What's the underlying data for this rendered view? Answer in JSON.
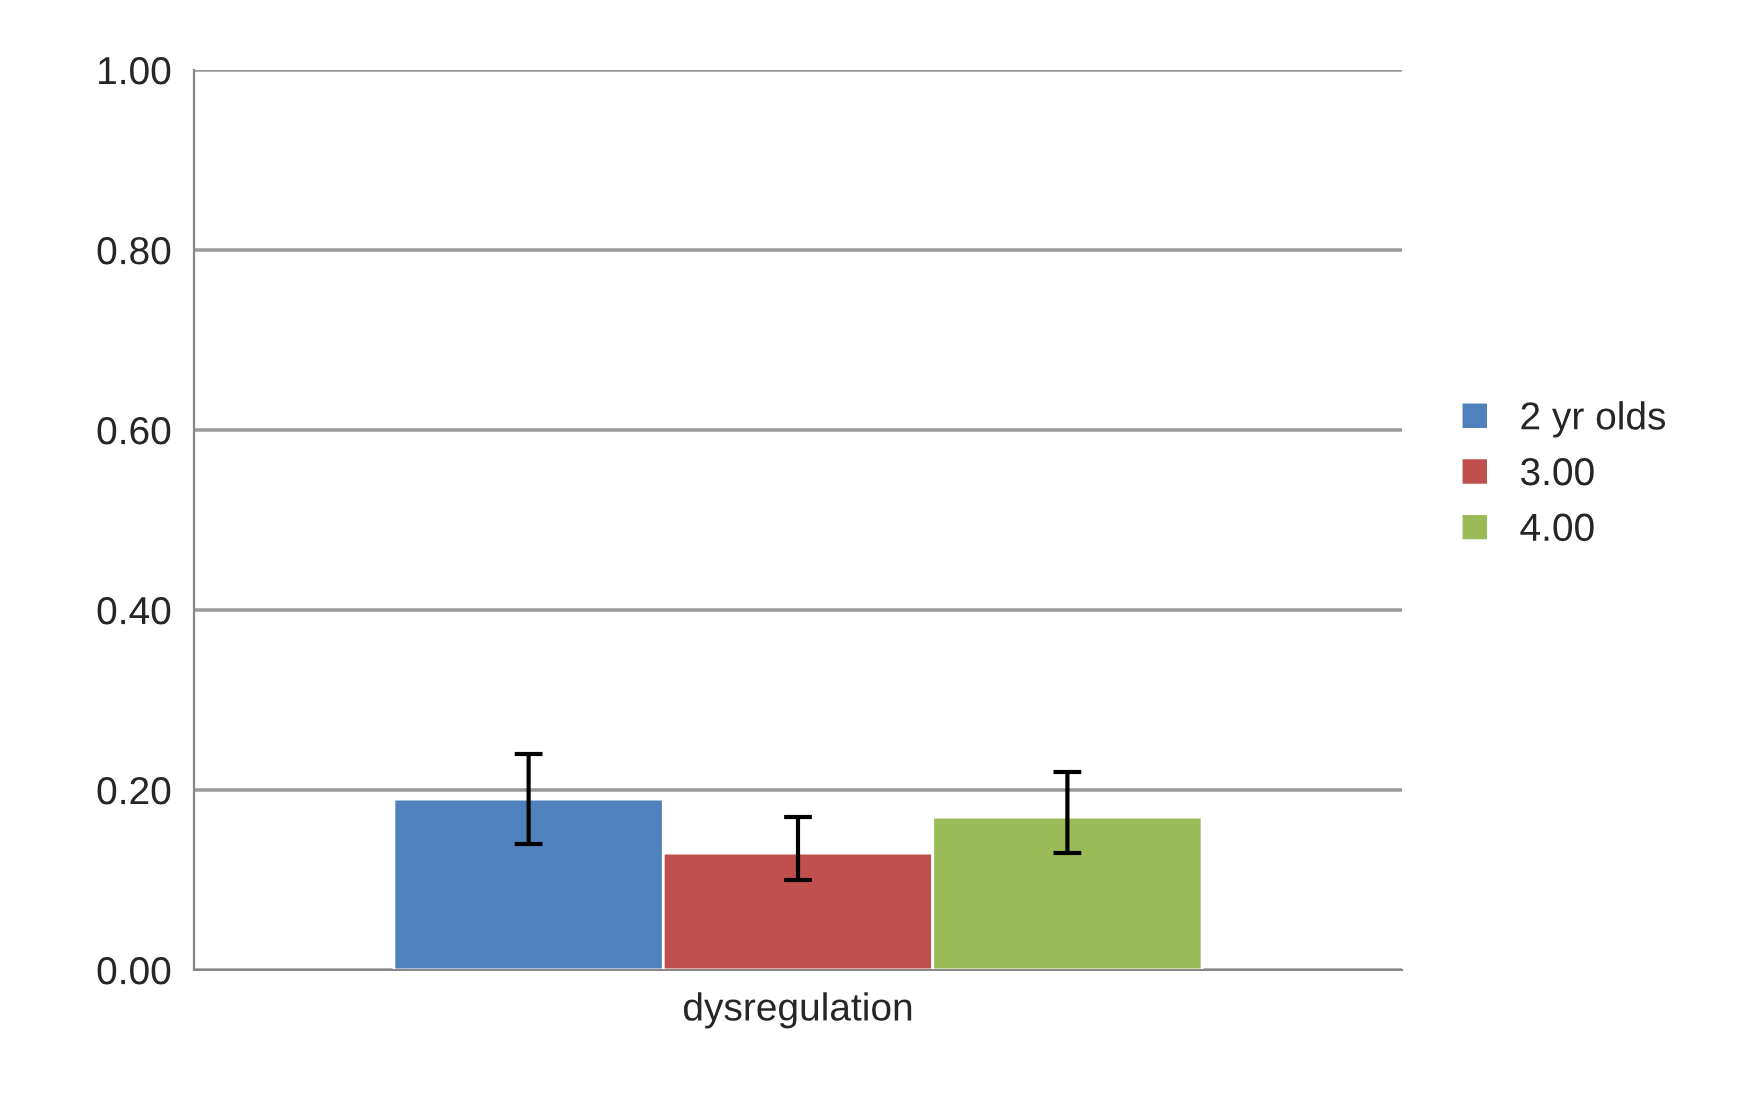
{
  "chart_data": {
    "type": "bar",
    "categories": [
      "dysregulation"
    ],
    "series": [
      {
        "name": "2 yr olds",
        "color": "#4f81bd",
        "values": [
          0.19
        ],
        "errors": [
          [
            0.14,
            0.24
          ]
        ]
      },
      {
        "name": "3.00",
        "color": "#c0504d",
        "values": [
          0.13
        ],
        "errors": [
          [
            0.1,
            0.17
          ]
        ]
      },
      {
        "name": "4.00",
        "color": "#9bbb59",
        "values": [
          0.17
        ],
        "errors": [
          [
            0.13,
            0.22
          ]
        ]
      }
    ],
    "ylim": [
      0,
      1
    ],
    "yticks": [
      {
        "value": 0,
        "label": "0.00"
      },
      {
        "value": 0.2,
        "label": "0.20"
      },
      {
        "value": 0.4,
        "label": "0.40"
      },
      {
        "value": 0.6,
        "label": "0.60"
      },
      {
        "value": 0.8,
        "label": "0.80"
      },
      {
        "value": 1,
        "label": "1.00"
      }
    ],
    "grid": "y",
    "legend": "right"
  }
}
